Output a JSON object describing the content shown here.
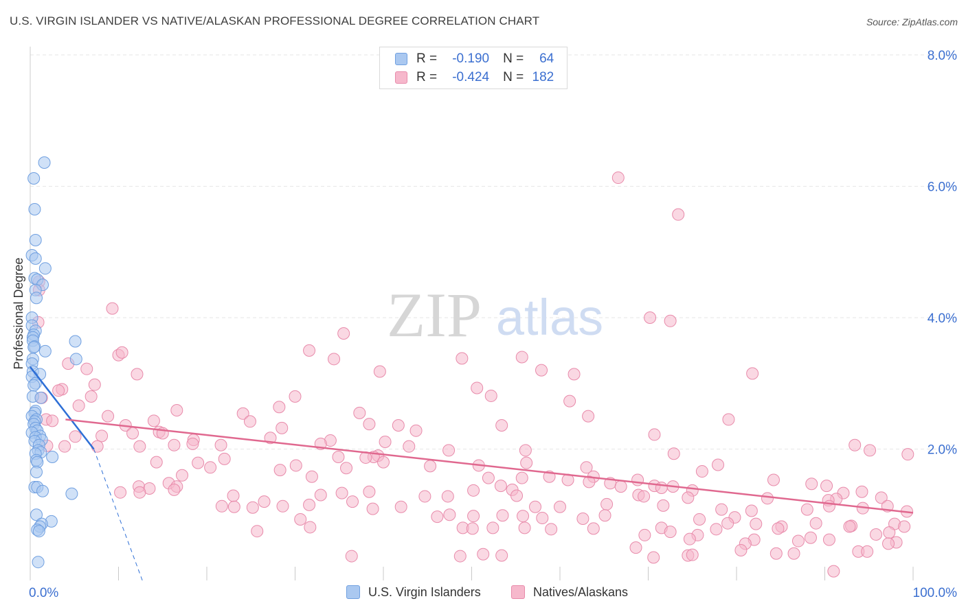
{
  "title": "U.S. VIRGIN ISLANDER VS NATIVE/ALASKAN PROFESSIONAL DEGREE CORRELATION CHART",
  "source": "Source: ZipAtlas.com",
  "watermark": {
    "zip": "ZIP",
    "atlas": "atlas"
  },
  "legend": {
    "r_label": "R =",
    "n_label": "N =",
    "series1": {
      "r": "-0.190",
      "n": "64"
    },
    "series2": {
      "r": "-0.424",
      "n": "182"
    }
  },
  "colors": {
    "blue_fill": "#aac8f0",
    "blue_stroke": "#6f9fe0",
    "blue_line": "#2e6fd6",
    "pink_fill": "#f6b8cc",
    "pink_stroke": "#e88aaa",
    "pink_line": "#e0688f",
    "axis_label": "#3b6fd0",
    "grid": "#e6e6e6"
  },
  "chart_data": {
    "type": "scatter",
    "title": "U.S. VIRGIN ISLANDER VS NATIVE/ALASKAN PROFESSIONAL DEGREE CORRELATION CHART",
    "xlabel": "",
    "ylabel": "Professional Degree",
    "xlim": [
      0,
      100
    ],
    "ylim": [
      0,
      8.0
    ],
    "x_tick_labels": [
      "0.0%",
      "100.0%"
    ],
    "y_ticks": [
      2.0,
      4.0,
      6.0,
      8.0
    ],
    "y_tick_labels": [
      "2.0%",
      "4.0%",
      "6.0%",
      "8.0%"
    ],
    "grid": true,
    "series": [
      {
        "name": "U.S. Virgin Islanders",
        "r": -0.19,
        "n": 64,
        "trend": {
          "x": [
            0,
            7.2
          ],
          "y": [
            3.25,
            2.0
          ],
          "dashed_extension_to": [
            12.7,
            0.0
          ]
        },
        "points": [
          [
            1.6,
            6.36
          ],
          [
            0.4,
            6.12
          ],
          [
            0.5,
            5.65
          ],
          [
            0.6,
            5.18
          ],
          [
            0.2,
            4.95
          ],
          [
            0.6,
            4.9
          ],
          [
            1.7,
            4.75
          ],
          [
            0.5,
            4.6
          ],
          [
            0.8,
            4.58
          ],
          [
            1.4,
            4.5
          ],
          [
            0.6,
            4.42
          ],
          [
            0.7,
            4.3
          ],
          [
            0.2,
            4.0
          ],
          [
            0.2,
            3.88
          ],
          [
            0.6,
            3.8
          ],
          [
            0.4,
            3.74
          ],
          [
            0.3,
            3.7
          ],
          [
            0.3,
            3.65
          ],
          [
            5.1,
            3.64
          ],
          [
            0.5,
            3.56
          ],
          [
            0.4,
            3.55
          ],
          [
            1.7,
            3.49
          ],
          [
            0.3,
            3.37
          ],
          [
            5.2,
            3.37
          ],
          [
            0.2,
            3.3
          ],
          [
            0.3,
            3.18
          ],
          [
            1.1,
            3.14
          ],
          [
            0.2,
            3.1
          ],
          [
            0.6,
            3.0
          ],
          [
            0.4,
            2.97
          ],
          [
            0.3,
            2.8
          ],
          [
            1.2,
            2.78
          ],
          [
            0.6,
            2.58
          ],
          [
            0.5,
            2.55
          ],
          [
            0.2,
            2.5
          ],
          [
            0.7,
            2.45
          ],
          [
            0.5,
            2.42
          ],
          [
            0.4,
            2.38
          ],
          [
            0.6,
            2.32
          ],
          [
            0.8,
            2.28
          ],
          [
            0.2,
            2.25
          ],
          [
            1.1,
            2.2
          ],
          [
            0.6,
            2.18
          ],
          [
            1.3,
            2.14
          ],
          [
            0.5,
            2.12
          ],
          [
            1.0,
            2.06
          ],
          [
            0.9,
            1.98
          ],
          [
            1.2,
            1.95
          ],
          [
            0.6,
            1.93
          ],
          [
            2.5,
            1.88
          ],
          [
            0.7,
            1.83
          ],
          [
            0.8,
            1.8
          ],
          [
            0.7,
            1.65
          ],
          [
            0.5,
            1.42
          ],
          [
            0.8,
            1.42
          ],
          [
            1.4,
            1.36
          ],
          [
            4.7,
            1.32
          ],
          [
            0.7,
            1.0
          ],
          [
            2.4,
            0.9
          ],
          [
            1.3,
            0.86
          ],
          [
            1.1,
            0.82
          ],
          [
            0.8,
            0.77
          ],
          [
            1.0,
            0.75
          ],
          [
            0.9,
            0.28
          ]
        ]
      },
      {
        "name": "Natives/Alaskans",
        "r": -0.424,
        "n": 182,
        "trend": {
          "x": [
            4.0,
            100
          ],
          "y": [
            2.45,
            1.03
          ]
        },
        "points": [
          [
            66.6,
            6.13
          ],
          [
            73.4,
            5.57
          ],
          [
            1.0,
            4.55
          ],
          [
            1.0,
            4.42
          ],
          [
            9.3,
            4.14
          ],
          [
            0.9,
            3.93
          ],
          [
            70.2,
            4.0
          ],
          [
            72.5,
            3.95
          ],
          [
            35.5,
            3.76
          ],
          [
            31.6,
            3.5
          ],
          [
            10.0,
            3.43
          ],
          [
            10.4,
            3.47
          ],
          [
            34.4,
            3.37
          ],
          [
            48.9,
            3.38
          ],
          [
            55.7,
            3.4
          ],
          [
            4.3,
            3.3
          ],
          [
            6.4,
            3.22
          ],
          [
            39.6,
            3.18
          ],
          [
            57.9,
            3.2
          ],
          [
            61.6,
            3.14
          ],
          [
            81.8,
            3.15
          ],
          [
            12.1,
            3.14
          ],
          [
            7.3,
            2.98
          ],
          [
            3.6,
            2.91
          ],
          [
            3.2,
            2.89
          ],
          [
            50.6,
            2.93
          ],
          [
            52.2,
            2.81
          ],
          [
            6.9,
            2.8
          ],
          [
            30.0,
            2.8
          ],
          [
            1.3,
            2.78
          ],
          [
            61.1,
            2.73
          ],
          [
            5.5,
            2.66
          ],
          [
            28.2,
            2.64
          ],
          [
            16.6,
            2.59
          ],
          [
            37.3,
            2.55
          ],
          [
            8.8,
            2.5
          ],
          [
            63.2,
            2.5
          ],
          [
            24.1,
            2.54
          ],
          [
            1.8,
            2.45
          ],
          [
            2.5,
            2.43
          ],
          [
            79.1,
            2.45
          ],
          [
            14.0,
            2.43
          ],
          [
            24.9,
            2.42
          ],
          [
            38.4,
            2.38
          ],
          [
            10.8,
            2.36
          ],
          [
            41.7,
            2.36
          ],
          [
            53.4,
            2.36
          ],
          [
            28.5,
            2.32
          ],
          [
            43.7,
            2.28
          ],
          [
            14.6,
            2.26
          ],
          [
            11.6,
            2.24
          ],
          [
            15.0,
            2.24
          ],
          [
            5.1,
            2.19
          ],
          [
            8.1,
            2.2
          ],
          [
            70.7,
            2.22
          ],
          [
            27.2,
            2.17
          ],
          [
            18.5,
            2.14
          ],
          [
            40.2,
            2.11
          ],
          [
            34.0,
            2.13
          ],
          [
            1.9,
            2.05
          ],
          [
            18.4,
            2.08
          ],
          [
            32.9,
            2.08
          ],
          [
            42.9,
            2.04
          ],
          [
            7.6,
            2.04
          ],
          [
            3.9,
            2.04
          ],
          [
            12.4,
            2.04
          ],
          [
            16.3,
            2.06
          ],
          [
            21.6,
            2.06
          ],
          [
            56.1,
            1.98
          ],
          [
            47.4,
            1.98
          ],
          [
            93.4,
            2.06
          ],
          [
            99.4,
            1.92
          ],
          [
            95.1,
            1.98
          ],
          [
            72.9,
            1.93
          ],
          [
            39.4,
            1.9
          ],
          [
            38.9,
            1.88
          ],
          [
            34.9,
            1.88
          ],
          [
            38.0,
            1.87
          ],
          [
            22.0,
            1.85
          ],
          [
            40.0,
            1.8
          ],
          [
            14.3,
            1.8
          ],
          [
            19.0,
            1.79
          ],
          [
            30.1,
            1.75
          ],
          [
            56.2,
            1.79
          ],
          [
            50.8,
            1.75
          ],
          [
            45.3,
            1.74
          ],
          [
            63.0,
            1.72
          ],
          [
            77.9,
            1.76
          ],
          [
            20.4,
            1.72
          ],
          [
            35.8,
            1.71
          ],
          [
            28.3,
            1.68
          ],
          [
            76.1,
            1.66
          ],
          [
            63.8,
            1.58
          ],
          [
            17.2,
            1.6
          ],
          [
            31.9,
            1.58
          ],
          [
            51.9,
            1.56
          ],
          [
            55.7,
            1.56
          ],
          [
            58.8,
            1.58
          ],
          [
            68.8,
            1.53
          ],
          [
            84.2,
            1.53
          ],
          [
            88.5,
            1.47
          ],
          [
            60.9,
            1.53
          ],
          [
            63.3,
            1.5
          ],
          [
            65.7,
            1.48
          ],
          [
            66.9,
            1.43
          ],
          [
            90.2,
            1.44
          ],
          [
            15.7,
            1.48
          ],
          [
            70.7,
            1.44
          ],
          [
            12.3,
            1.43
          ],
          [
            16.6,
            1.43
          ],
          [
            53.3,
            1.44
          ],
          [
            13.5,
            1.4
          ],
          [
            16.3,
            1.38
          ],
          [
            10.2,
            1.34
          ],
          [
            50.2,
            1.37
          ],
          [
            38.4,
            1.35
          ],
          [
            72.8,
            1.43
          ],
          [
            71.5,
            1.41
          ],
          [
            75.0,
            1.37
          ],
          [
            32.9,
            1.3
          ],
          [
            54.6,
            1.38
          ],
          [
            12.4,
            1.34
          ],
          [
            35.3,
            1.33
          ],
          [
            68.9,
            1.3
          ],
          [
            92.1,
            1.33
          ],
          [
            94.2,
            1.35
          ],
          [
            55.1,
            1.29
          ],
          [
            44.7,
            1.28
          ],
          [
            47.3,
            1.28
          ],
          [
            23.0,
            1.29
          ],
          [
            96.4,
            1.26
          ],
          [
            91.3,
            1.24
          ],
          [
            83.5,
            1.25
          ],
          [
            90.4,
            1.22
          ],
          [
            69.5,
            1.28
          ],
          [
            74.5,
            1.26
          ],
          [
            36.5,
            1.2
          ],
          [
            26.5,
            1.2
          ],
          [
            65.3,
            1.16
          ],
          [
            31.6,
            1.15
          ],
          [
            42.0,
            1.12
          ],
          [
            57.2,
            1.12
          ],
          [
            60.0,
            1.12
          ],
          [
            71.7,
            1.14
          ],
          [
            97.1,
            1.13
          ],
          [
            90.5,
            1.13
          ],
          [
            21.7,
            1.13
          ],
          [
            23.1,
            1.12
          ],
          [
            25.2,
            1.11
          ],
          [
            28.6,
            1.13
          ],
          [
            88.0,
            1.08
          ],
          [
            94.3,
            1.1
          ],
          [
            99.3,
            1.05
          ],
          [
            78.3,
            1.08
          ],
          [
            81.7,
            1.06
          ],
          [
            65.1,
            0.99
          ],
          [
            55.8,
            0.98
          ],
          [
            79.8,
            0.96
          ],
          [
            46.1,
            0.97
          ],
          [
            47.5,
            1.0
          ],
          [
            38.8,
            1.09
          ],
          [
            50.2,
            0.98
          ],
          [
            53.5,
            0.99
          ],
          [
            58.0,
            0.95
          ],
          [
            62.6,
            0.94
          ],
          [
            75.8,
            0.93
          ],
          [
            30.6,
            0.93
          ],
          [
            97.9,
            0.86
          ],
          [
            79.0,
            0.87
          ],
          [
            82.2,
            0.86
          ],
          [
            89.0,
            0.87
          ],
          [
            85.1,
            0.82
          ],
          [
            93.0,
            0.83
          ],
          [
            71.5,
            0.8
          ],
          [
            77.7,
            0.78
          ],
          [
            31.7,
            0.81
          ],
          [
            49.0,
            0.8
          ],
          [
            50.1,
            0.79
          ],
          [
            59.0,
            0.78
          ],
          [
            84.7,
            0.79
          ],
          [
            99.0,
            0.82
          ],
          [
            69.6,
            0.69
          ],
          [
            75.6,
            0.69
          ],
          [
            74.7,
            0.63
          ],
          [
            88.4,
            0.65
          ],
          [
            98.1,
            0.58
          ],
          [
            25.7,
            0.75
          ],
          [
            52.4,
            0.8
          ],
          [
            56.0,
            0.8
          ],
          [
            63.8,
            0.79
          ],
          [
            97.3,
            0.73
          ],
          [
            92.8,
            0.82
          ],
          [
            72.5,
            0.74
          ],
          [
            95.8,
            0.7
          ],
          [
            90.5,
            0.62
          ],
          [
            82.0,
            0.62
          ],
          [
            81.0,
            0.56
          ],
          [
            87.0,
            0.6
          ],
          [
            97.2,
            0.56
          ],
          [
            68.6,
            0.5
          ],
          [
            93.8,
            0.44
          ],
          [
            86.5,
            0.41
          ],
          [
            84.5,
            0.41
          ],
          [
            74.5,
            0.38
          ],
          [
            75.0,
            0.39
          ],
          [
            70.6,
            0.35
          ],
          [
            53.4,
            0.38
          ],
          [
            51.3,
            0.4
          ],
          [
            48.7,
            0.37
          ],
          [
            36.4,
            0.37
          ],
          [
            94.8,
            0.44
          ],
          [
            80.5,
            0.46
          ],
          [
            91.0,
            0.14
          ]
        ]
      }
    ]
  },
  "bottom_legend": {
    "series1": "U.S. Virgin Islanders",
    "series2": "Natives/Alaskans"
  }
}
